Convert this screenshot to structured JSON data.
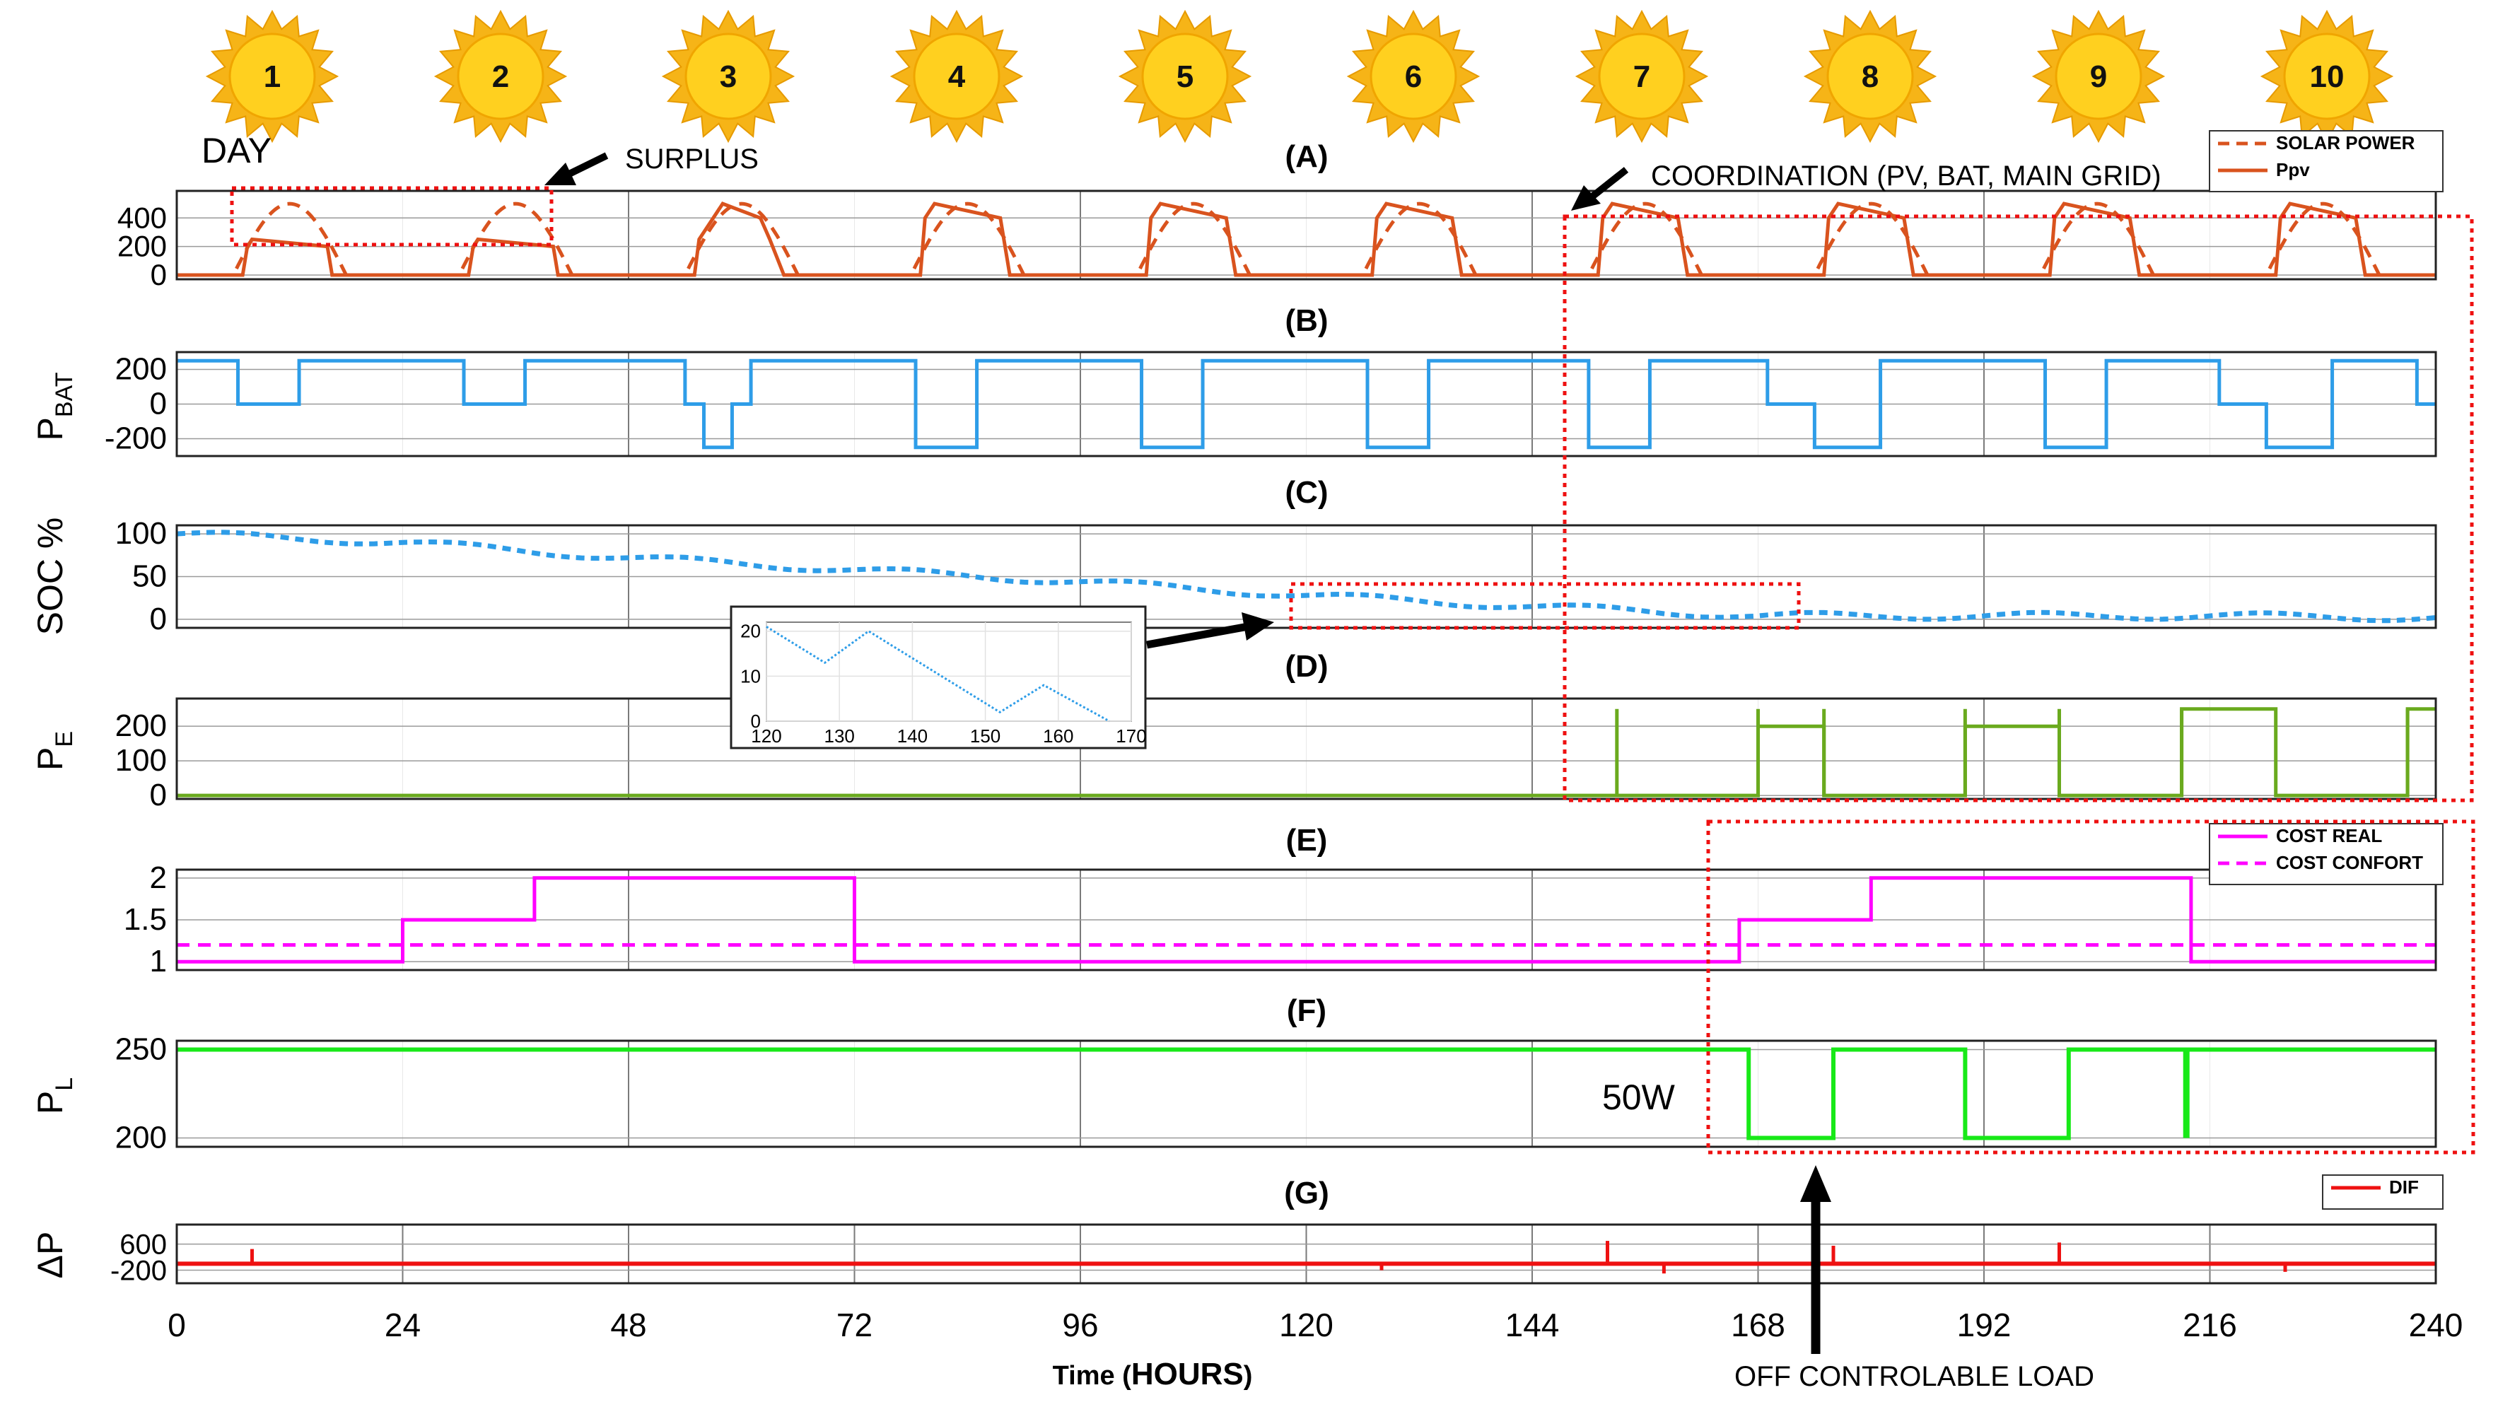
{
  "days": [
    "1",
    "2",
    "3",
    "4",
    "5",
    "6",
    "7",
    "8",
    "9",
    "10"
  ],
  "colors": {
    "orange": "#d9531e",
    "blue": "#2e9de8",
    "green": "#6aaa1e",
    "magenta": "#ff00ff",
    "lime": "#18e918",
    "red": "#ee1111",
    "annot": "#ee1111",
    "sun": "#f6b417",
    "sun_core": "#ffd01f"
  },
  "annotations": {
    "day": "DAY",
    "surplus": "SURPLUS",
    "coordination": "COORDINATION (PV, BAT, MAIN GRID)",
    "load_step": "50W",
    "off_load": "OFF CONTROLABLE LOAD"
  },
  "xaxis": {
    "label_prefix": "Time (",
    "label_unit": "HOURS",
    "label_suffix": ")",
    "ticks": [
      0,
      24,
      48,
      72,
      96,
      120,
      144,
      168,
      192,
      216,
      240
    ],
    "xlim": [
      0,
      240
    ]
  },
  "inset": {
    "xlim": [
      120,
      170
    ],
    "ylim": [
      0,
      22
    ],
    "xticks": [
      120,
      130,
      140,
      150,
      160,
      170
    ],
    "yticks": [
      0,
      10,
      20
    ],
    "points": [
      [
        120,
        21
      ],
      [
        128,
        13
      ],
      [
        134,
        20
      ],
      [
        152,
        2
      ],
      [
        158,
        8
      ],
      [
        167,
        0
      ]
    ]
  },
  "chart_data": [
    {
      "panel": "(A)",
      "type": "line",
      "ylabel": "",
      "ylim": [
        -30,
        590
      ],
      "yticks": [
        0,
        200,
        400
      ],
      "legend": {
        "placement": "top-right",
        "entries": [
          "SOLAR POWER",
          "Ppv"
        ]
      },
      "series": [
        {
          "name": "SOLAR POWER",
          "style": "dashed",
          "peak": 500,
          "daylight_start": 6,
          "daylight_end": 18
        },
        {
          "name": "Ppv",
          "style": "solid",
          "step_profile": "steps 250 on days 1-2, 250/400 on day 3, 400/500 flat top on days 4-10",
          "start": 7,
          "end": 17
        }
      ]
    },
    {
      "panel": "(B)",
      "type": "line",
      "ylabel": "P_BAT",
      "ylim": [
        -300,
        300
      ],
      "yticks": [
        -200,
        0,
        200
      ],
      "series": [
        {
          "name": "P_BAT",
          "pattern": "+250 at night, 0 or -250 during daylight"
        }
      ]
    },
    {
      "panel": "(C)",
      "type": "line",
      "ylabel": "SOC %",
      "ylim": [
        -10,
        110
      ],
      "yticks": [
        0,
        50,
        100
      ],
      "series": [
        {
          "name": "SOC",
          "style": "dotted",
          "x": [
            0,
            24,
            48,
            72,
            96,
            120,
            144,
            168,
            192,
            216,
            240
          ],
          "values": [
            100,
            90,
            72,
            58,
            44,
            28,
            15,
            4,
            4,
            4,
            2
          ]
        }
      ]
    },
    {
      "panel": "(D)",
      "type": "line",
      "ylabel": "P_E",
      "ylim": [
        -10,
        280
      ],
      "yticks": [
        0,
        100,
        200
      ],
      "series": [
        {
          "name": "P_E",
          "segments": [
            [
              0,
              153,
              0
            ],
            [
              153,
              168,
              0
            ],
            [
              168,
              175,
              200
            ],
            [
              175,
              190,
              0
            ],
            [
              190,
              200,
              200
            ],
            [
              200,
              213,
              0
            ],
            [
              213,
              223,
              250
            ],
            [
              223,
              237,
              0
            ],
            [
              237,
              240,
              250
            ]
          ]
        }
      ]
    },
    {
      "panel": "(E)",
      "type": "line",
      "ylabel": "",
      "ylim": [
        0.9,
        2.1
      ],
      "yticks": [
        1,
        1.5,
        2
      ],
      "legend": {
        "placement": "top-right",
        "entries": [
          "COST REAL",
          "COST CONFORT"
        ]
      },
      "series": [
        {
          "name": "COST REAL",
          "style": "solid",
          "steps": [
            [
              0,
              24,
              1
            ],
            [
              24,
              38,
              1.5
            ],
            [
              38,
              72,
              2
            ],
            [
              72,
              166,
              1
            ],
            [
              166,
              180,
              1.5
            ],
            [
              180,
              214,
              2
            ],
            [
              214,
              240,
              1
            ]
          ]
        },
        {
          "name": "COST CONFORT",
          "style": "dashed",
          "constant": 1.2
        }
      ]
    },
    {
      "panel": "(F)",
      "type": "line",
      "ylabel": "P_L",
      "ylim": [
        195,
        255
      ],
      "yticks": [
        200,
        250
      ],
      "series": [
        {
          "name": "P_L",
          "steps": [
            [
              0,
              167,
              250
            ],
            [
              167,
              176,
              200
            ],
            [
              176,
              190,
              250
            ],
            [
              190,
              201,
              200
            ],
            [
              201,
              240,
              250
            ]
          ]
        }
      ]
    },
    {
      "panel": "(G)",
      "type": "line",
      "ylabel": "ΔP",
      "ylim": [
        -600,
        1200
      ],
      "yticks": [
        -200,
        600
      ],
      "legend": {
        "placement": "top-right",
        "entries": [
          "DIF"
        ]
      },
      "series": [
        {
          "name": "DIF",
          "baseline": 0,
          "spikes": [
            [
              8,
              450
            ],
            [
              128,
              -200
            ],
            [
              152,
              700
            ],
            [
              158,
              -300
            ],
            [
              176,
              550
            ],
            [
              200,
              650
            ],
            [
              224,
              -250
            ]
          ]
        }
      ]
    }
  ]
}
